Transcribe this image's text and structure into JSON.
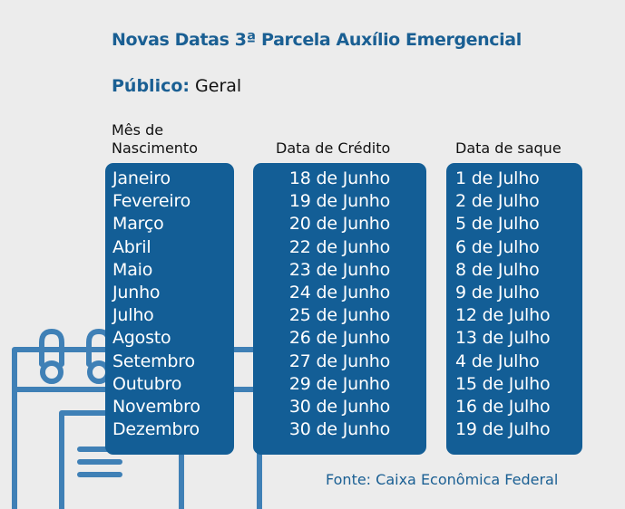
{
  "title": "Novas Datas 3ª Parcela Auxílio Emergencial",
  "publico": {
    "label": "Público:",
    "value": "Geral"
  },
  "columns": {
    "mes": [
      "Mês de",
      "Nascimento"
    ],
    "credito": "Data de Crédito",
    "saque": "Data de saque"
  },
  "months": [
    "Janeiro",
    "Fevereiro",
    "Março",
    "Abril",
    "Maio",
    "Junho",
    "Julho",
    "Agosto",
    "Setembro",
    "Outubro",
    "Novembro",
    "Dezembro"
  ],
  "credito": [
    "18 de Junho",
    "19 de Junho",
    "20 de Junho",
    "22 de Junho",
    "23 de Junho",
    "24 de Junho",
    "25 de Junho",
    "26 de Junho",
    "27 de Junho",
    "29 de Junho",
    "30 de Junho",
    "30 de Junho"
  ],
  "saque": [
    "1 de Julho",
    "2 de Julho",
    "5 de Julho",
    "6 de Julho",
    "8 de Julho",
    "9 de Julho",
    "12 de Julho",
    "13 de Julho",
    "4 de Julho",
    "15 de Julho",
    "16 de Julho",
    "19 de Julho"
  ],
  "fonte": "Fonte: Caixa Econômica Federal",
  "colors": {
    "accent": "#1a5f93",
    "panel": "#135e96",
    "background": "#ececec",
    "decoration": "#3f80b6"
  },
  "decoration": "calendar-icon"
}
